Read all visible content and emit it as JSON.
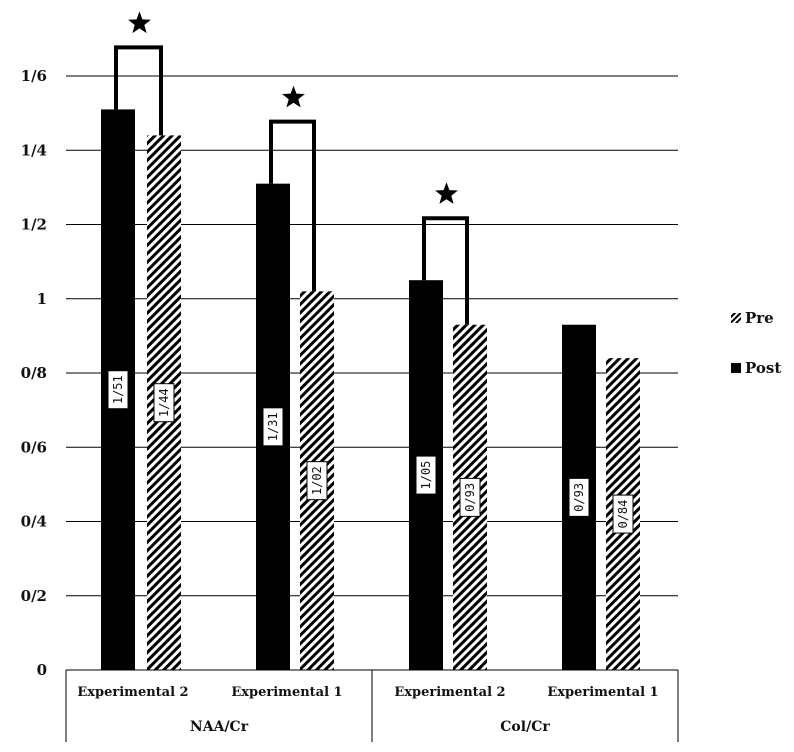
{
  "chart_data": {
    "type": "bar",
    "title": "",
    "xlabel": "",
    "ylabel": "",
    "ylim": [
      0,
      1.6
    ],
    "yticks": [
      {
        "value": 0,
        "label": "0"
      },
      {
        "value": 0.2,
        "label": "0/2"
      },
      {
        "value": 0.4,
        "label": "0/4"
      },
      {
        "value": 0.6,
        "label": "0/6"
      },
      {
        "value": 0.8,
        "label": "0/8"
      },
      {
        "value": 1.0,
        "label": "1"
      },
      {
        "value": 1.2,
        "label": "1/2"
      },
      {
        "value": 1.4,
        "label": "1/4"
      },
      {
        "value": 1.6,
        "label": "1/6"
      }
    ],
    "grid": true,
    "legend_position": "right",
    "groups": [
      {
        "label": "NAA/Cr",
        "categories": [
          "Experimental 2",
          "Experimental 1"
        ]
      },
      {
        "label": "Col/Cr",
        "categories": [
          "Experimental 2",
          "Experimental 1"
        ]
      }
    ],
    "categories": [
      "Experimental 2",
      "Experimental 1",
      "Experimental 2",
      "Experimental 1"
    ],
    "series": [
      {
        "name": "Post",
        "pattern": "solid",
        "color": "#000000",
        "values": [
          1.51,
          1.31,
          1.05,
          0.93
        ],
        "labels": [
          "1/51",
          "1/31",
          "1/05",
          "0/93"
        ]
      },
      {
        "name": "Pre",
        "pattern": "hatched",
        "color": "#000000",
        "values": [
          1.44,
          1.02,
          0.93,
          0.84
        ],
        "labels": [
          "1/44",
          "1/02",
          "0/93",
          "0/84"
        ]
      }
    ],
    "legend_order": [
      "Pre",
      "Post"
    ],
    "significance": [
      true,
      true,
      true,
      false
    ]
  }
}
